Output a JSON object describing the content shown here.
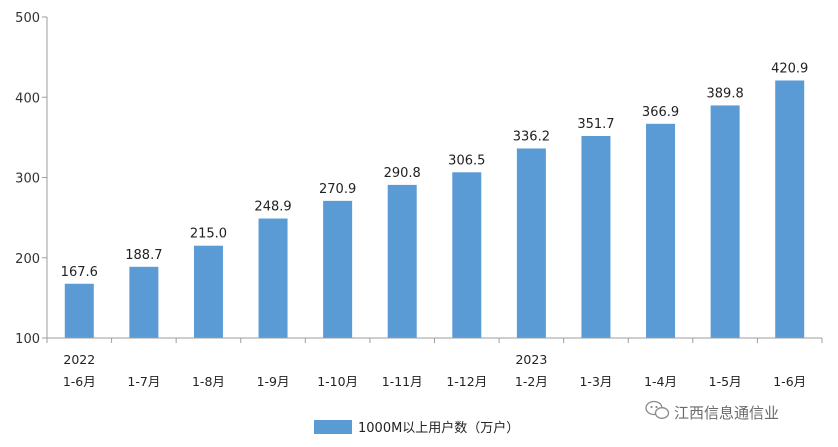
{
  "chart_data": {
    "type": "bar",
    "categories": [
      "2022\n1-6月",
      "1-7月",
      "1-8月",
      "1-9月",
      "1-10月",
      "1-11月",
      "1-12月",
      "2023\n1-2月",
      "1-3月",
      "1-4月",
      "1-5月",
      "1-6月"
    ],
    "series": [
      {
        "name": "1000M以上用户数（万户）",
        "values": [
          167.6,
          188.7,
          215.0,
          248.9,
          270.9,
          290.8,
          306.5,
          336.2,
          351.7,
          366.9,
          389.8,
          420.9
        ],
        "labels": [
          "167.6",
          "188.7",
          "215.0",
          "248.9",
          "270.9",
          "290.8",
          "306.5",
          "336.2",
          "351.7",
          "366.9",
          "389.8",
          "420.9"
        ],
        "color": "#5b9bd5"
      }
    ],
    "yticks": [
      "100",
      "200",
      "300",
      "400",
      "500"
    ],
    "ylim": [
      100,
      500
    ],
    "grid": false,
    "legend_position": "bottom-center"
  },
  "watermark": {
    "text": "江西信息通信业",
    "icon": "wechat-icon"
  },
  "colors": {
    "bar": "#5b9bd5",
    "axis": "#9e9e9e"
  }
}
